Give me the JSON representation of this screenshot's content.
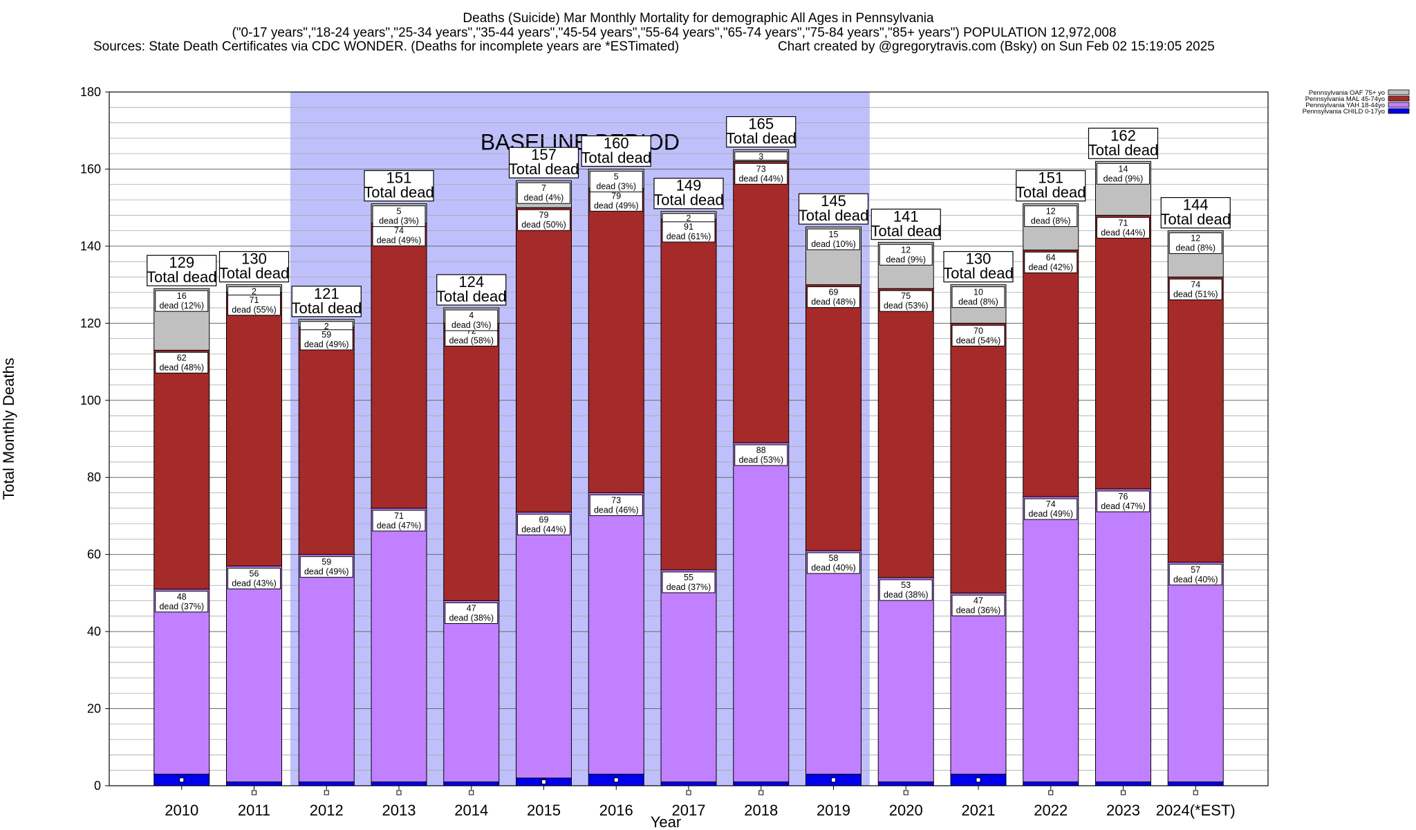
{
  "title": {
    "line1": "Deaths (Suicide) Mar Monthly Mortality for demographic All Ages in Pennsylvania",
    "line2": "(\"0-17 years\",\"18-24 years\",\"25-34 years\",\"35-44 years\",\"45-54 years\",\"55-64 years\",\"65-74 years\",\"75-84 years\",\"85+ years\") POPULATION 12,972,008",
    "line3_left": "Sources: State Death Certificates via CDC WONDER. (Deaths for incomplete years are *ESTimated)",
    "line3_right": "Chart created by @gregorytravis.com (Bsky) on Sun Feb 02 15:19:05 2025"
  },
  "chart_data": {
    "type": "bar",
    "stacked": true,
    "xlabel": "Year",
    "ylabel": "Total Monthly Deaths",
    "ylim": [
      0,
      180
    ],
    "yticks": [
      0,
      20,
      40,
      60,
      80,
      100,
      120,
      140,
      160,
      180
    ],
    "grid": true,
    "legend_position": "top-right",
    "baseline": {
      "label": "BASELINE PERIOD",
      "from": "2012",
      "to": "2019",
      "color": "#BFC0FB"
    },
    "categories": [
      "2010",
      "2011",
      "2012",
      "2013",
      "2014",
      "2015",
      "2016",
      "2017",
      "2018",
      "2019",
      "2020",
      "2021",
      "2022",
      "2023",
      "2024(*EST)"
    ],
    "totals": [
      129,
      130,
      121,
      151,
      124,
      157,
      160,
      149,
      165,
      145,
      141,
      130,
      151,
      162,
      144
    ],
    "total_label_suffix": "Total dead",
    "dead_word": "dead",
    "series": [
      {
        "name": "Pennsylvania CHILD 0-17yo",
        "color": "#0000EE",
        "values": [
          3,
          1,
          1,
          1,
          1,
          2,
          3,
          1,
          1,
          3,
          1,
          3,
          1,
          1,
          1
        ]
      },
      {
        "name": "Pennsylvania YAH 18-44yo",
        "color": "#C080FF",
        "values": [
          48,
          56,
          59,
          71,
          47,
          69,
          73,
          55,
          88,
          58,
          53,
          47,
          74,
          76,
          57
        ],
        "pct": [
          "37%",
          "43%",
          "49%",
          "47%",
          "38%",
          "44%",
          "46%",
          "37%",
          "53%",
          "40%",
          "38%",
          "36%",
          "49%",
          "47%",
          "40%"
        ]
      },
      {
        "name": "Pennsylvania MAL 45-74yo",
        "color": "#A52A2A",
        "values": [
          62,
          71,
          59,
          74,
          72,
          79,
          79,
          91,
          73,
          69,
          75,
          70,
          64,
          71,
          74
        ],
        "pct": [
          "48%",
          "55%",
          "49%",
          "49%",
          "58%",
          "50%",
          "49%",
          "61%",
          "44%",
          "48%",
          "53%",
          "54%",
          "42%",
          "44%",
          "51%"
        ]
      },
      {
        "name": "Pennsylvania OAF 75+ yo",
        "color": "#C0C0C0",
        "values": [
          16,
          2,
          2,
          5,
          4,
          7,
          5,
          2,
          3,
          15,
          12,
          10,
          12,
          14,
          12
        ],
        "pct": [
          "12%",
          "",
          "",
          "3%",
          "3%",
          "4%",
          "3%",
          "",
          "",
          "10%",
          "9%",
          "8%",
          "8%",
          "9%",
          "8%"
        ]
      }
    ]
  }
}
